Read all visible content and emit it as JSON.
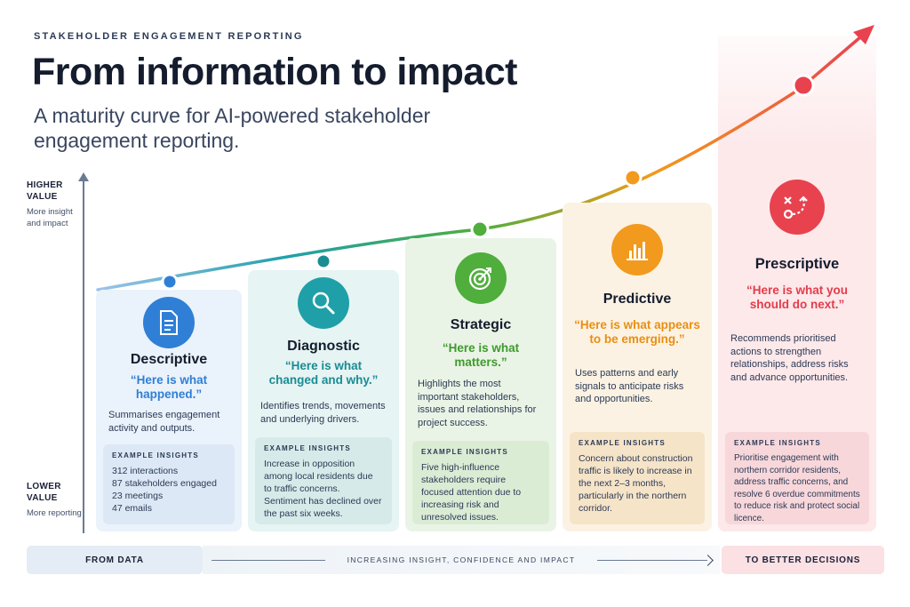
{
  "header": {
    "kicker": "STAKEHOLDER ENGAGEMENT REPORTING",
    "title": "From information to impact",
    "subtitle": "A maturity curve for AI-powered stakeholder engagement reporting."
  },
  "axis": {
    "top_label": "HIGHER",
    "top_label2": "VALUE",
    "top_sub": "More insight and impact",
    "bottom_label": "LOWER",
    "bottom_label2": "VALUE",
    "bottom_sub": "More reporting"
  },
  "example_heading": "EXAMPLE INSIGHTS",
  "stages": [
    {
      "name": "Descriptive",
      "quote": "“Here is what happened.”",
      "description": "Summarises engagement activity and outputs.",
      "examples": [
        "312 interactions",
        "87 stakeholders engaged",
        "23 meetings",
        "47 emails"
      ],
      "icon": "document-icon",
      "color": "#2f7fd6"
    },
    {
      "name": "Diagnostic",
      "quote": "“Here is what changed and why.”",
      "description": "Identifies trends, movements and underlying drivers.",
      "example_text": "Increase in opposition among local residents due to traffic concerns. Sentiment has declined over the past six weeks.",
      "icon": "magnifier-icon",
      "color": "#1fa0a8"
    },
    {
      "name": "Strategic",
      "quote": "“Here is what matters.”",
      "description": "Highlights the most important stakeholders, issues and relationships for project success.",
      "example_text": "Five high-influence stakeholders require focused attention due to increasing risk and unresolved issues.",
      "icon": "target-icon",
      "color": "#4fae3c"
    },
    {
      "name": "Predictive",
      "quote": "“Here is what appears to be emerging.”",
      "description": "Uses patterns and early signals to anticipate risks and opportunities.",
      "example_text": "Concern about construction traffic is likely to increase in the next 2–3 months, particularly in the northern corridor.",
      "icon": "bar-chart-icon",
      "color": "#f29a1d"
    },
    {
      "name": "Prescriptive",
      "quote": "“Here is what you should do next.”",
      "description": "Recommends prioritised actions to strengthen relationships, address risks and advance opportunities.",
      "example_text": "Prioritise engagement with northern corridor residents, address traffic concerns, and resolve 6 overdue commitments to reduce risk and protect social licence.",
      "icon": "strategy-play-icon",
      "color": "#e8424f"
    }
  ],
  "footer": {
    "left": "FROM DATA",
    "middle": "INCREASING INSIGHT, CONFIDENCE AND IMPACT",
    "right": "TO BETTER DECISIONS"
  }
}
